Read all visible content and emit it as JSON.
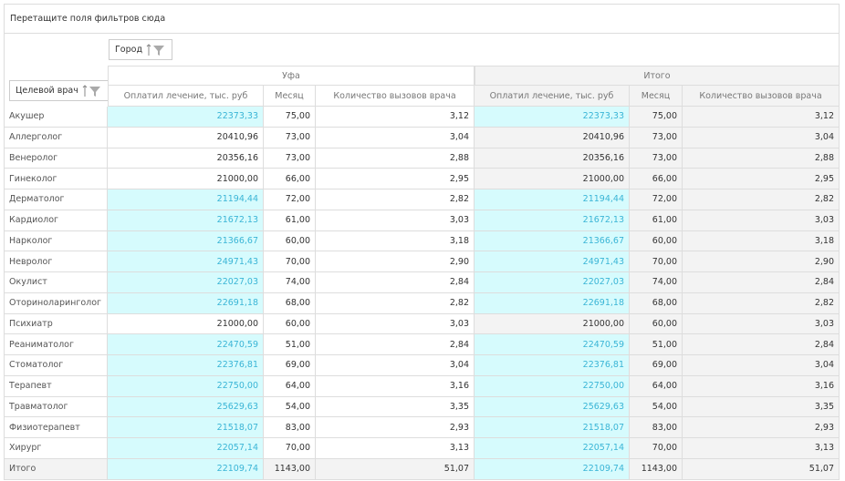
{
  "filter_area": {
    "placeholder": "Перетащите поля фильтров сюда"
  },
  "column_field": {
    "label": "Город"
  },
  "row_field": {
    "label": "Целевой врач"
  },
  "column_groups": [
    "Уфа",
    "Итого"
  ],
  "measures": [
    "Оплатил лечение, тыс. руб",
    "Месяц",
    "Количество вызовов врача"
  ],
  "rows": [
    {
      "name": "Акушер",
      "cells": [
        "22373,33",
        "75,00",
        "3,12",
        "22373,33",
        "75,00",
        "3,12"
      ],
      "highlight": true
    },
    {
      "name": "Аллерголог",
      "cells": [
        "20410,96",
        "73,00",
        "3,04",
        "20410,96",
        "73,00",
        "3,04"
      ],
      "highlight": false
    },
    {
      "name": "Венеролог",
      "cells": [
        "20356,16",
        "73,00",
        "2,88",
        "20356,16",
        "73,00",
        "2,88"
      ],
      "highlight": false
    },
    {
      "name": "Гинеколог",
      "cells": [
        "21000,00",
        "66,00",
        "2,95",
        "21000,00",
        "66,00",
        "2,95"
      ],
      "highlight": false
    },
    {
      "name": "Дерматолог",
      "cells": [
        "21194,44",
        "72,00",
        "2,82",
        "21194,44",
        "72,00",
        "2,82"
      ],
      "highlight": true
    },
    {
      "name": "Кардиолог",
      "cells": [
        "21672,13",
        "61,00",
        "3,03",
        "21672,13",
        "61,00",
        "3,03"
      ],
      "highlight": true
    },
    {
      "name": "Нарколог",
      "cells": [
        "21366,67",
        "60,00",
        "3,18",
        "21366,67",
        "60,00",
        "3,18"
      ],
      "highlight": true
    },
    {
      "name": "Невролог",
      "cells": [
        "24971,43",
        "70,00",
        "2,90",
        "24971,43",
        "70,00",
        "2,90"
      ],
      "highlight": true
    },
    {
      "name": "Окулист",
      "cells": [
        "22027,03",
        "74,00",
        "2,84",
        "22027,03",
        "74,00",
        "2,84"
      ],
      "highlight": true
    },
    {
      "name": "Оториноларинголог",
      "cells": [
        "22691,18",
        "68,00",
        "2,82",
        "22691,18",
        "68,00",
        "2,82"
      ],
      "highlight": true
    },
    {
      "name": "Психиатр",
      "cells": [
        "21000,00",
        "60,00",
        "3,03",
        "21000,00",
        "60,00",
        "3,03"
      ],
      "highlight": false
    },
    {
      "name": "Реаниматолог",
      "cells": [
        "22470,59",
        "51,00",
        "2,84",
        "22470,59",
        "51,00",
        "2,84"
      ],
      "highlight": true
    },
    {
      "name": "Стоматолог",
      "cells": [
        "22376,81",
        "69,00",
        "3,04",
        "22376,81",
        "69,00",
        "3,04"
      ],
      "highlight": true
    },
    {
      "name": "Терапевт",
      "cells": [
        "22750,00",
        "64,00",
        "3,16",
        "22750,00",
        "64,00",
        "3,16"
      ],
      "highlight": true
    },
    {
      "name": "Травматолог",
      "cells": [
        "25629,63",
        "54,00",
        "3,35",
        "25629,63",
        "54,00",
        "3,35"
      ],
      "highlight": true
    },
    {
      "name": "Физиотерапевт",
      "cells": [
        "21518,07",
        "83,00",
        "2,93",
        "21518,07",
        "83,00",
        "2,93"
      ],
      "highlight": true
    },
    {
      "name": "Хирург",
      "cells": [
        "22057,14",
        "70,00",
        "3,13",
        "22057,14",
        "70,00",
        "3,13"
      ],
      "highlight": true
    },
    {
      "name": "Итого",
      "cells": [
        "22109,74",
        "1143,00",
        "51,07",
        "22109,74",
        "1143,00",
        "51,07"
      ],
      "highlight": true
    }
  ]
}
